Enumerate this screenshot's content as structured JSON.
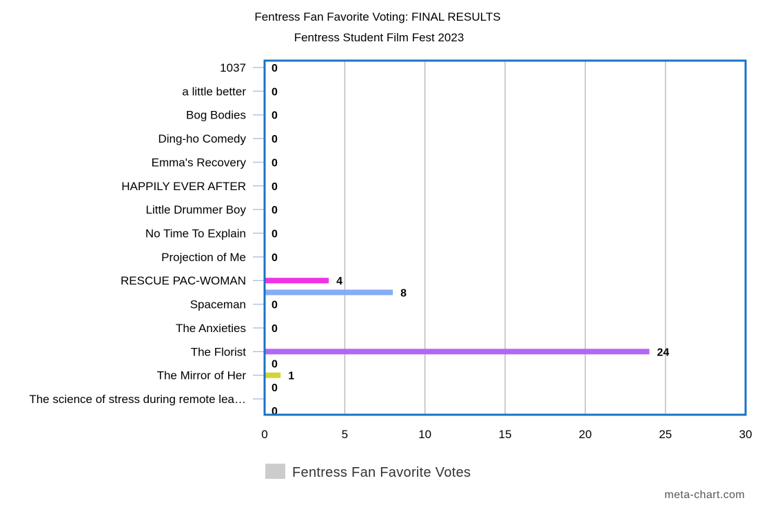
{
  "chart_data": {
    "type": "bar",
    "orientation": "horizontal",
    "title": "Fentress Fan Favorite Voting: FINAL RESULTS",
    "subtitle": "Fentress Student Film Fest 2023",
    "categories": [
      "1037",
      "a little better",
      "Bog Bodies",
      "Ding-ho Comedy",
      "Emma's Recovery",
      "HAPPILY EVER AFTER",
      "Little Drummer Boy",
      "No Time To Explain",
      "Projection of Me",
      "RESCUE PAC-WOMAN",
      "Spaceman",
      "The Anxieties",
      "The Florist",
      "The Mirror of Her",
      "The science of stress during remote lea…"
    ],
    "bars": [
      {
        "value": 0,
        "slot": 0,
        "color": "#f032e6"
      },
      {
        "value": 0,
        "slot": 1,
        "color": "#f032e6"
      },
      {
        "value": 0,
        "slot": 2,
        "color": "#f032e6"
      },
      {
        "value": 0,
        "slot": 3,
        "color": "#f032e6"
      },
      {
        "value": 0,
        "slot": 4,
        "color": "#f032e6"
      },
      {
        "value": 0,
        "slot": 5,
        "color": "#f032e6"
      },
      {
        "value": 0,
        "slot": 6,
        "color": "#f032e6"
      },
      {
        "value": 0,
        "slot": 7,
        "color": "#f032e6"
      },
      {
        "value": 0,
        "slot": 8,
        "color": "#f032e6"
      },
      {
        "value": 4,
        "slot": 9,
        "color": "#f032e6"
      },
      {
        "value": 8,
        "slot": 9.5,
        "color": "#86acf5"
      },
      {
        "value": 0,
        "slot": 10,
        "color": "#86acf5"
      },
      {
        "value": 0,
        "slot": 11,
        "color": "#86acf5"
      },
      {
        "value": 24,
        "slot": 12,
        "color": "#b565f5"
      },
      {
        "value": 0,
        "slot": 12.5,
        "color": "#b565f5"
      },
      {
        "value": 1,
        "slot": 13,
        "color": "#d4d43a"
      },
      {
        "value": 0,
        "slot": 13.5,
        "color": "#d4d43a"
      },
      {
        "value": 0,
        "slot": 14.5,
        "color": "#d4d43a"
      }
    ],
    "xlim": [
      0,
      30
    ],
    "xticks": [
      0,
      5,
      10,
      15,
      20,
      25,
      30
    ],
    "grid": true,
    "legend": {
      "label": "Fentress Fan Favorite Votes",
      "color": "#cccccc",
      "position": "bottom"
    },
    "frame_color": "#1a73c4"
  },
  "credit": "meta-chart.com"
}
